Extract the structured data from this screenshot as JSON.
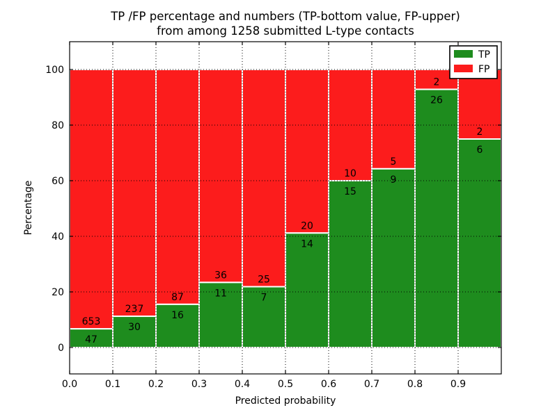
{
  "figure": {
    "title_line1": "TP /FP percentage and numbers (TP-bottom value, FP-upper)",
    "title_line2": "from among 1258 submitted L-type contacts",
    "xlabel": "Predicted probability",
    "ylabel": "Percentage"
  },
  "legend": {
    "position": "upper right",
    "items": [
      {
        "label": "TP",
        "color": "#1e8c1e"
      },
      {
        "label": "FP",
        "color": "#fc1c1c"
      }
    ]
  },
  "chart_data": {
    "type": "bar",
    "variant": "stacked-percentage",
    "title": "TP /FP percentage and numbers (TP-bottom value, FP-upper) from among 1258 submitted L-type contacts",
    "xlabel": "Predicted probability",
    "ylabel": "Percentage",
    "total_submitted": 1258,
    "bin_start": [
      0.0,
      0.1,
      0.2,
      0.3,
      0.4,
      0.5,
      0.6,
      0.7,
      0.8,
      0.9
    ],
    "bin_width": 0.1,
    "categories": [
      "0.0-0.1",
      "0.1-0.2",
      "0.2-0.3",
      "0.3-0.4",
      "0.4-0.5",
      "0.5-0.6",
      "0.6-0.7",
      "0.7-0.8",
      "0.8-0.9",
      "0.9-1.0"
    ],
    "series": [
      {
        "name": "TP",
        "color": "#1e8c1e",
        "counts": [
          47,
          30,
          16,
          11,
          7,
          14,
          15,
          9,
          26,
          6
        ]
      },
      {
        "name": "FP",
        "color": "#fc1c1c",
        "counts": [
          653,
          237,
          87,
          36,
          25,
          20,
          10,
          5,
          2,
          2
        ]
      }
    ],
    "tp_percent_of_bin": [
      6.71,
      11.24,
      15.53,
      23.4,
      21.88,
      41.18,
      60.0,
      64.29,
      92.86,
      75.0
    ],
    "x_ticks": [
      "0.0",
      "0.1",
      "0.2",
      "0.3",
      "0.4",
      "0.5",
      "0.6",
      "0.7",
      "0.8",
      "0.9"
    ],
    "y_ticks": [
      0,
      20,
      40,
      60,
      80,
      100
    ],
    "xlim": [
      0.0,
      1.0
    ],
    "ylim": [
      -9.5,
      110
    ],
    "grid": {
      "style": "dotted",
      "color": "#000000"
    },
    "bar_edge_color": "#ffffff"
  }
}
